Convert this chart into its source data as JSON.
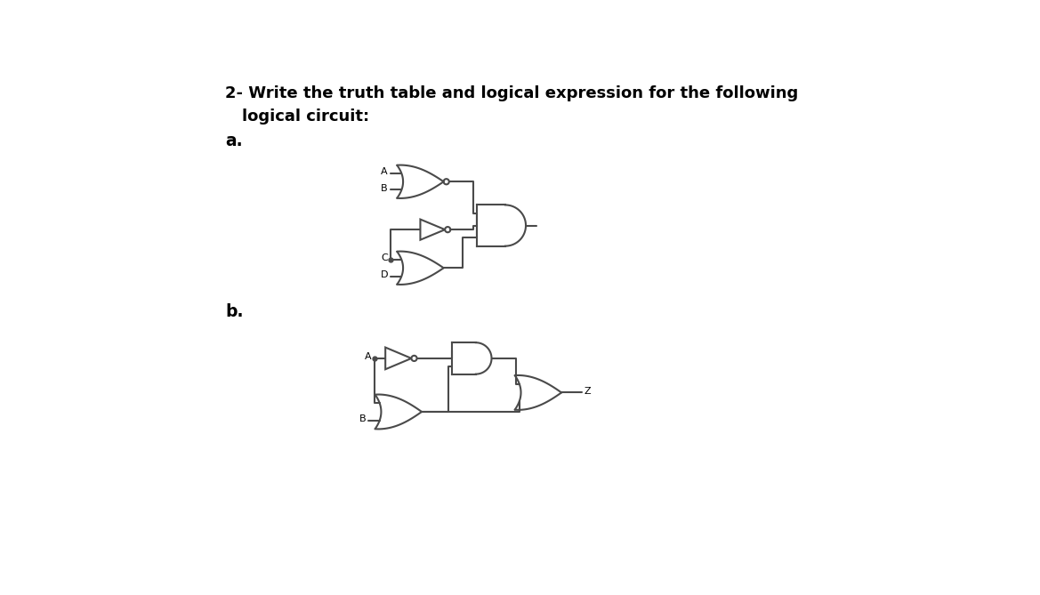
{
  "title_line1": "2- Write the truth table and logical expression for the following",
  "title_line2": "logical circuit:",
  "label_a": "a.",
  "label_b": "b.",
  "lc": "#4a4a4a",
  "lw": 1.5,
  "fs_title": 13.0,
  "fs_label": 13.5,
  "fs_io": 8.0
}
